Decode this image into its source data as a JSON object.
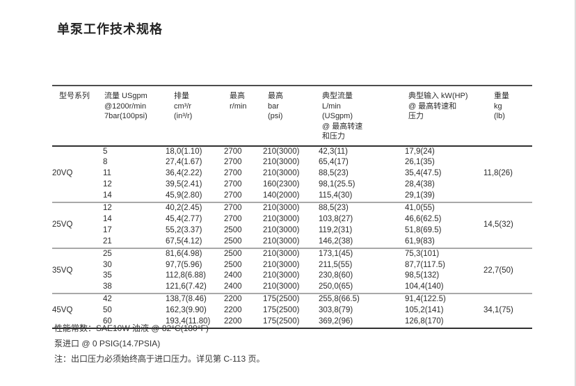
{
  "page": {
    "title": "单泵工作技术规格"
  },
  "table": {
    "headers": [
      {
        "lines": [
          "型号系列"
        ]
      },
      {
        "lines": [
          "流量 USgpm",
          "@1200r/min",
          "7bar(100psi)"
        ]
      },
      {
        "lines": [
          "排量",
          "cm³/r",
          "(in³/r)"
        ]
      },
      {
        "lines": [
          "最高",
          "r/min"
        ]
      },
      {
        "lines": [
          "最高",
          "bar",
          "(psi)"
        ]
      },
      {
        "lines": [
          "典型流量",
          "L/min",
          "(USgpm)",
          "@ 最高转速",
          "和压力"
        ]
      },
      {
        "lines": [
          "典型输入 kW(HP)",
          "@ 最高转速和",
          "压力"
        ]
      },
      {
        "lines": [
          "重量",
          "kg",
          "(lb)"
        ]
      }
    ],
    "sections": [
      {
        "model": "20VQ",
        "weight": "11,8(26)",
        "rows": [
          [
            "5",
            "18,0(1.10)",
            "2700",
            "210(3000)",
            "42,3(11)",
            "17,9(24)"
          ],
          [
            "8",
            "27,4(1.67)",
            "2700",
            "210(3000)",
            "65,4(17)",
            "26,1(35)"
          ],
          [
            "11",
            "36,4(2.22)",
            "2700",
            "210(3000)",
            "88,5(23)",
            "35,4(47.5)"
          ],
          [
            "12",
            "39,5(2.41)",
            "2700",
            "160(2300)",
            "98,1(25.5)",
            "28,4(38)"
          ],
          [
            "14",
            "45,9(2.80)",
            "2700",
            "140(2000)",
            "115,4(30)",
            "29,1(39)"
          ]
        ]
      },
      {
        "model": "25VQ",
        "weight": "14,5(32)",
        "rows": [
          [
            "12",
            "40,2(2.45)",
            "2700",
            "210(3000)",
            "88,5(23)",
            "41,0(55)"
          ],
          [
            "14",
            "45,4(2.77)",
            "2700",
            "210(3000)",
            "103,8(27)",
            "46,6(62.5)"
          ],
          [
            "17",
            "55,2(3.37)",
            "2500",
            "210(3000)",
            "119,2(31)",
            "51,8(69.5)"
          ],
          [
            "21",
            "67,5(4.12)",
            "2500",
            "210(3000)",
            "146,2(38)",
            "61,9(83)"
          ]
        ]
      },
      {
        "model": "35VQ",
        "weight": "22,7(50)",
        "rows": [
          [
            "25",
            "81,6(4.98)",
            "2500",
            "210(3000)",
            "173,1(45)",
            "75,3(101)"
          ],
          [
            "30",
            "97,7(5.96)",
            "2500",
            "210(3000)",
            "211,5(55)",
            "87,7(117.5)"
          ],
          [
            "35",
            "112,8(6.88)",
            "2400",
            "210(3000)",
            "230,8(60)",
            "98,5(132)"
          ],
          [
            "38",
            "121,6(7.42)",
            "2400",
            "210(3000)",
            "250,0(65)",
            "104,4(140)"
          ]
        ]
      },
      {
        "model": "45VQ",
        "weight": "34,1(75)",
        "rows": [
          [
            "42",
            "138,7(8.46)",
            "2200",
            "175(2500)",
            "255,8(66.5)",
            "91,4(122.5)"
          ],
          [
            "50",
            "162,3(9.90)",
            "2200",
            "175(2500)",
            "303,8(79)",
            "105,2(141)"
          ],
          [
            "60",
            "193,4(11.80)",
            "2200",
            "175(2500)",
            "369,2(96)",
            "126,8(170)"
          ]
        ]
      }
    ]
  },
  "footer": {
    "line1": "性能常数：SAE10W 油液 @ 82°C(180°F)",
    "line2": "泵进口 @ 0 PSIG(14.7PSIA)",
    "line3": "注：出口压力必须始终高于进口压力。详见第 C-113 页。"
  }
}
